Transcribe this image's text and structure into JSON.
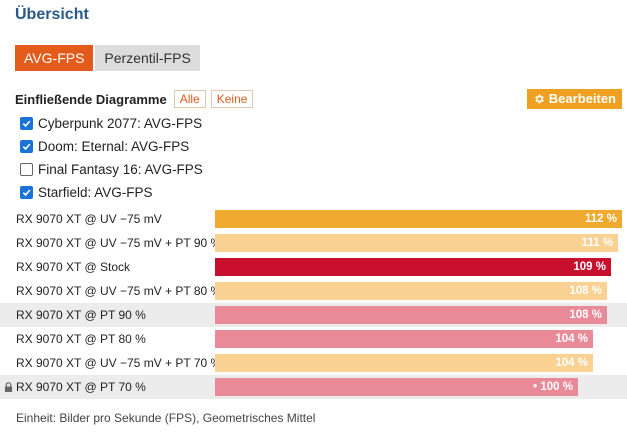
{
  "page": {
    "title": "Übersicht"
  },
  "tabs": [
    {
      "label": "AVG-FPS",
      "active": true
    },
    {
      "label": "Perzentil-FPS",
      "active": false
    }
  ],
  "diagrams": {
    "label": "Einfließende Diagramme",
    "all_label": "Alle",
    "none_label": "Keine",
    "edit_label": "Bearbeiten",
    "edit_icon": "gear-icon",
    "items": [
      {
        "label": "Cyberpunk 2077: AVG-FPS",
        "checked": true
      },
      {
        "label": "Doom: Eternal: AVG-FPS",
        "checked": true
      },
      {
        "label": "Final Fantasy 16: AVG-FPS",
        "checked": false
      },
      {
        "label": "Starfield: AVG-FPS",
        "checked": true
      }
    ]
  },
  "chart_data": {
    "type": "bar",
    "orientation": "horizontal",
    "categories": [
      "RX 9070 XT @ UV −75 mV",
      "RX 9070 XT @ UV −75 mV + PT 90 %",
      "RX 9070 XT @ Stock",
      "RX 9070 XT @ UV −75 mV + PT 80 %",
      "RX 9070 XT @ PT 90 %",
      "RX 9070 XT @ PT 80 %",
      "RX 9070 XT @ UV −75 mV + PT 70 %",
      "RX 9070 XT @ PT 70 %"
    ],
    "values": [
      112,
      111,
      109,
      108,
      108,
      104,
      104,
      100
    ],
    "value_labels": [
      "112 %",
      "111 %",
      "109 %",
      "108 %",
      "108 %",
      "104 %",
      "104 %",
      "• 100 %"
    ],
    "colors": [
      "#f0aa30",
      "#f9d193",
      "#c8102e",
      "#f9d193",
      "#e88a98",
      "#e88a98",
      "#f9d193",
      "#e88a98"
    ],
    "shaded_rows": [
      4,
      7
    ],
    "locked_row": 7,
    "xlim": [
      0,
      112
    ]
  },
  "footer": "Einheit: Bilder pro Sekunde (FPS), Geometrisches Mittel"
}
